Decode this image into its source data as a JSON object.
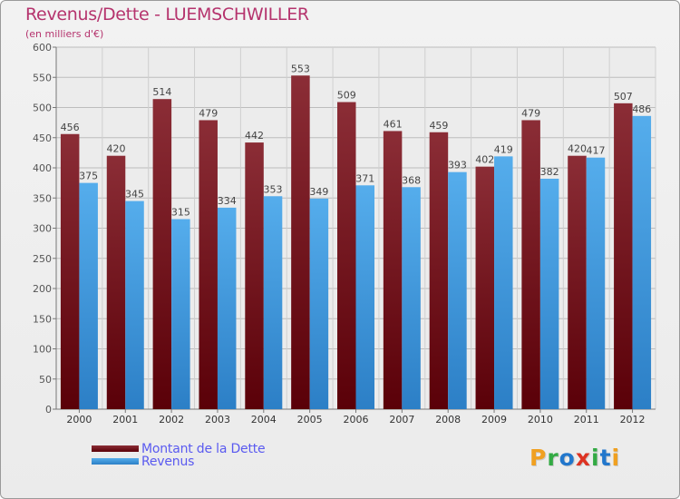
{
  "title": "Revenus/Dette - LUEMSCHWILLER",
  "subtitle": "(en milliers d'€)",
  "colors": {
    "dette": "#6b0a12",
    "dette_light": "#8b2d36",
    "revenus": "#4aa3e6",
    "revenus_dark": "#2c7fc6",
    "title": "#b5336d",
    "legend_text": "#5a5af0"
  },
  "legend": [
    {
      "label": "Montant de la Dette",
      "color": "#6b0a12"
    },
    {
      "label": "Revenus",
      "color": "#4aa3e6"
    }
  ],
  "logo": {
    "letters": [
      "P",
      "r",
      "o",
      "x",
      "i",
      "t",
      "i"
    ],
    "colors": [
      "#f0a020",
      "#33aa44",
      "#2277cc",
      "#dd3322",
      "#33aa44",
      "#2277cc",
      "#f0a020"
    ]
  },
  "chart_data": {
    "type": "bar",
    "title": "Revenus/Dette - LUEMSCHWILLER",
    "subtitle": "(en milliers d'€)",
    "categories": [
      "2000",
      "2001",
      "2002",
      "2003",
      "2004",
      "2005",
      "2006",
      "2007",
      "2008",
      "2009",
      "2010",
      "2011",
      "2012"
    ],
    "series": [
      {
        "name": "Montant de la Dette",
        "values": [
          456,
          420,
          514,
          479,
          442,
          553,
          509,
          461,
          459,
          402,
          479,
          420,
          507
        ]
      },
      {
        "name": "Revenus",
        "values": [
          375,
          345,
          315,
          334,
          353,
          349,
          371,
          368,
          393,
          419,
          382,
          417,
          486
        ]
      }
    ],
    "ylim": [
      0,
      600
    ],
    "yticks": [
      0,
      50,
      100,
      150,
      200,
      250,
      300,
      350,
      400,
      450,
      500,
      550,
      600
    ],
    "grid": true,
    "legend_position": "bottom-left"
  }
}
